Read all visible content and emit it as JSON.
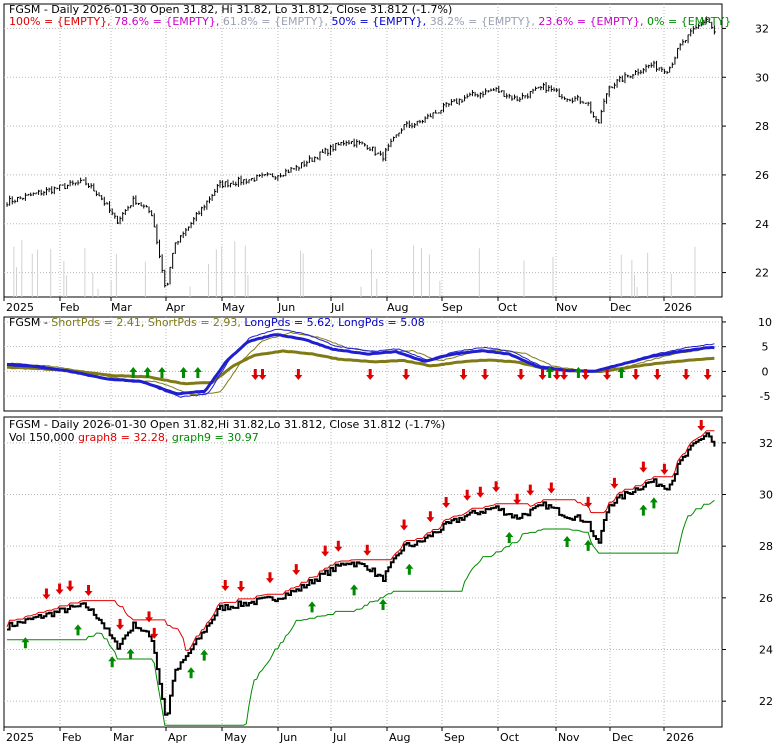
{
  "colors": {
    "price": "#000000",
    "red_arrow": "#e00000",
    "green_arrow": "#008a00",
    "blue": "#1f1fd0",
    "olive": "#7f7a16",
    "grid": "#b8b8b8",
    "volume": "#d2d2d2",
    "label_red": "#e00000",
    "label_magenta": "#cc00cc",
    "label_gray": "#9aa0b4",
    "label_blue": "#0000c8",
    "label_green": "#008a00"
  },
  "chart_data": [
    {
      "type": "line",
      "title": "FGSM - Daily 2026-01-30 Open 31.82, Hi 31.82, Lo 31.812, Close 31.812 (-1.7%)",
      "fib_labels": [
        {
          "text": "100% = {EMPTY},",
          "color": "red"
        },
        {
          "text": "78.6% = {EMPTY},",
          "color": "magenta"
        },
        {
          "text": "61.8% = {EMPTY},",
          "color": "gray"
        },
        {
          "text": "50% = {EMPTY},",
          "color": "blue"
        },
        {
          "text": "38.2% = {EMPTY},",
          "color": "gray"
        },
        {
          "text": "23.6% = {EMPTY},",
          "color": "magenta"
        },
        {
          "text": "0% = {EMPTY}",
          "color": "green"
        }
      ],
      "y_ticks": [
        "22",
        "24",
        "26",
        "28",
        "30",
        "32"
      ],
      "ylim": [
        21,
        33
      ],
      "x_ticks": [
        "2025",
        "Feb",
        "Mar",
        "Apr",
        "May",
        "Jun",
        "Jul",
        "Aug",
        "Sep",
        "Oct",
        "Nov",
        "Dec",
        "2026"
      ],
      "price_keypoints": [
        [
          0,
          24.9
        ],
        [
          0.05,
          25.3
        ],
        [
          0.09,
          25.6
        ],
        [
          0.11,
          25.7
        ],
        [
          0.13,
          25.2
        ],
        [
          0.155,
          24.1
        ],
        [
          0.18,
          25.0
        ],
        [
          0.205,
          24.4
        ],
        [
          0.225,
          21.2
        ],
        [
          0.235,
          23.0
        ],
        [
          0.27,
          24.4
        ],
        [
          0.3,
          25.6
        ],
        [
          0.34,
          25.8
        ],
        [
          0.38,
          26.0
        ],
        [
          0.41,
          26.3
        ],
        [
          0.44,
          26.8
        ],
        [
          0.48,
          27.4
        ],
        [
          0.51,
          27.2
        ],
        [
          0.53,
          26.7
        ],
        [
          0.56,
          28.0
        ],
        [
          0.58,
          28.1
        ],
        [
          0.62,
          28.8
        ],
        [
          0.65,
          29.2
        ],
        [
          0.69,
          29.5
        ],
        [
          0.72,
          29.1
        ],
        [
          0.76,
          29.6
        ],
        [
          0.79,
          29.2
        ],
        [
          0.82,
          29.0
        ],
        [
          0.835,
          28.0
        ],
        [
          0.85,
          29.6
        ],
        [
          0.88,
          30.1
        ],
        [
          0.91,
          30.5
        ],
        [
          0.935,
          30.3
        ],
        [
          0.95,
          31.2
        ],
        [
          0.97,
          31.9
        ],
        [
          0.99,
          32.4
        ],
        [
          1.0,
          31.8
        ]
      ]
    },
    {
      "type": "line",
      "title_prefix": "FGSM - ",
      "series": [
        {
          "name": "ShortPds = 2.41,",
          "color": "olive"
        },
        {
          "name": "ShortPds = 2.93,",
          "color": "olive"
        },
        {
          "name": "LongPds = 5.62,",
          "color": "blue"
        },
        {
          "name": "LongPds = 5.08",
          "color": "blue"
        }
      ],
      "y_ticks": [
        "10",
        "5",
        "0",
        "-5"
      ],
      "ylim": [
        -8,
        11
      ],
      "osc_keypoints": [
        [
          0,
          1.5
        ],
        [
          0.05,
          1.0
        ],
        [
          0.1,
          0.0
        ],
        [
          0.15,
          -1.5
        ],
        [
          0.2,
          -2.0
        ],
        [
          0.25,
          -4.5
        ],
        [
          0.29,
          -4.0
        ],
        [
          0.32,
          2.0
        ],
        [
          0.35,
          6.0
        ],
        [
          0.39,
          7.5
        ],
        [
          0.43,
          6.5
        ],
        [
          0.47,
          4.5
        ],
        [
          0.52,
          3.5
        ],
        [
          0.56,
          4.0
        ],
        [
          0.6,
          2.0
        ],
        [
          0.64,
          3.5
        ],
        [
          0.68,
          4.2
        ],
        [
          0.72,
          3.5
        ],
        [
          0.76,
          1.0
        ],
        [
          0.8,
          0.2
        ],
        [
          0.84,
          0.0
        ],
        [
          0.88,
          1.5
        ],
        [
          0.92,
          3.0
        ],
        [
          0.96,
          4.0
        ],
        [
          1.0,
          4.8
        ]
      ]
    },
    {
      "type": "line",
      "title": "FGSM - Daily 2026-01-30 Open 31.82,Hi 31.82,Lo 31.812, Close 31.812 (-1.7%)",
      "legend": [
        {
          "text": "Vol 150,000",
          "color": "black"
        },
        {
          "text": "graph8 = 32.28,",
          "color": "red"
        },
        {
          "text": "graph9 = 30.97",
          "color": "green"
        }
      ],
      "y_ticks": [
        "22",
        "24",
        "26",
        "28",
        "30",
        "32"
      ],
      "ylim": [
        21,
        33
      ],
      "x_ticks": [
        "2025",
        "Feb",
        "Mar",
        "Apr",
        "May",
        "Jun",
        "Jul",
        "Aug",
        "Sep",
        "Oct",
        "Nov",
        "Dec",
        "2026"
      ]
    }
  ]
}
